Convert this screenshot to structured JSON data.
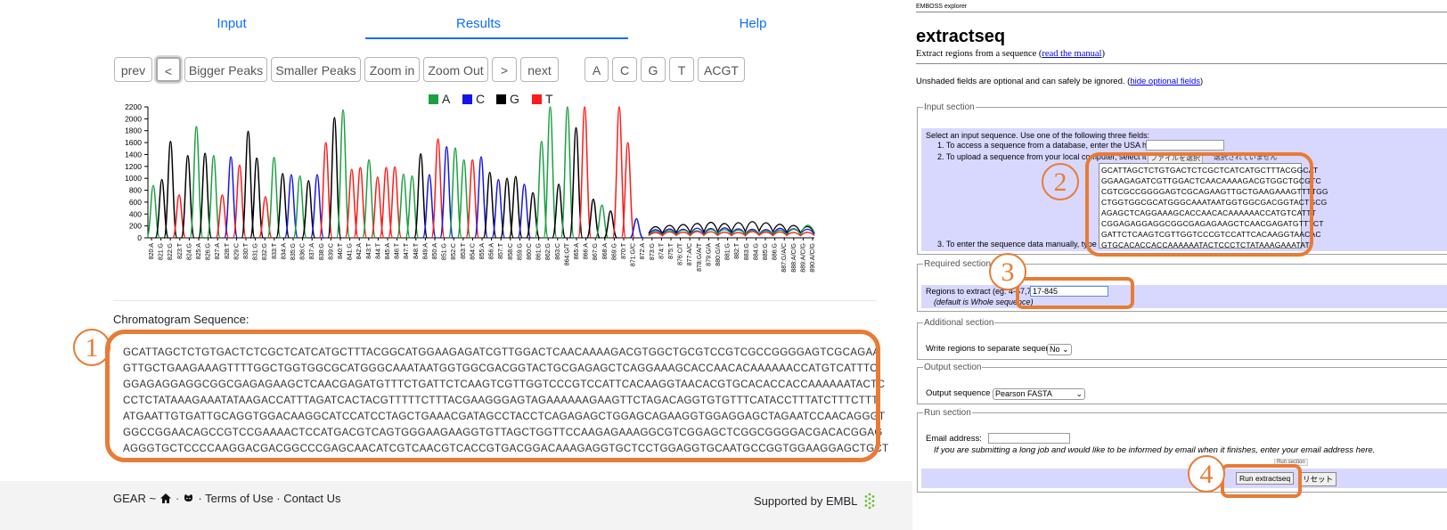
{
  "gear": {
    "tabs": {
      "input": "Input",
      "results": "Results",
      "help": "Help"
    },
    "toolbar": {
      "prev": "prev",
      "back": "<",
      "bigger": "Bigger Peaks",
      "smaller": "Smaller Peaks",
      "zoom_in": "Zoom in",
      "zoom_out": "Zoom Out",
      "forward": ">",
      "next": "next",
      "a": "A",
      "c": "C",
      "g": "G",
      "t": "T",
      "acgt": "ACGT"
    },
    "legend": [
      {
        "label": "A",
        "color": "#1aa040"
      },
      {
        "label": "C",
        "color": "#1515e6"
      },
      {
        "label": "G",
        "color": "#000000"
      },
      {
        "label": "T",
        "color": "#ff1a1a"
      }
    ],
    "seq_heading": "Chromatogram Sequence:",
    "sequence_lines": [
      "GCATTAGCTCTGTGACTCTCGCTCATCATGCTTTACGGCATGGAAGAGATCGTTGGACTCAACAAAAGACGTGGCTGCGTCCGTCGCCGGGGAGTCGCAGAA",
      "GTTGCTGAAGAAAGTTTTGGCTGGTGGCGCATGGGCAAATAATGGTGGCGACGGTACTGCGAGAGCTCAGGAAAGCACCAACACAAAAAACCATGTCATTTC",
      "GGAGAGGAGGCGGCGAGAGAAGCTCAACGAGATGTTTCTGATTCTCAAGTCGTTGGTCCCGTCCATTCACAAGGTAACACGTGCACACCACCAAAAAATACTC",
      "CCTCTATAAAGAAATATAAGACCATTTAGATCACTACGTTTTTCTTTACGAAGGGAGTAGAAAAAAGAAGTTCTAGACAGGTGTGTTTCATACCTTTATCTTTCTTT",
      "ATGAATTGTGATTGCAGGTGGACAAGGCATCCATCCTAGCTGAAACGATAGCCTACCTCAGAGAGCTGGAGCAGAAGGTGGAGGAGCTAGAATCCAACAGGGT",
      "GGCCGGAACAGCCGTCCGAAAACTCCATGACGTCAGTGGGAAGAAGGTGTTAGCTGGTTCCAAGAGAAAGGCGTCGGAGCTCGGCGGGGACGACACGGAG",
      "AGGGTGCTCCCCAAGGACGACGGCCCGAGCAACATCGTCAACGTCACCGTGACGGACAAAGAGGTGCTCCTGGAGGTGCAATGCCGGTGGAAGGAGCTGCT"
    ],
    "footer": {
      "left": "GEAR ~",
      "links": "· Terms of Use · Contact Us",
      "right": "Supported by EMBL"
    },
    "chart_data": {
      "type": "line",
      "ylim": [
        0,
        2200
      ],
      "yticks": [
        0,
        200,
        400,
        600,
        800,
        1000,
        1200,
        1400,
        1600,
        1800,
        2000,
        2200
      ],
      "xticks": [
        "820:A",
        "821:G",
        "822:G",
        "823:T",
        "824:G",
        "825:A",
        "826:G",
        "827:A",
        "828:T",
        "829:C",
        "830:T",
        "831:G",
        "832:G",
        "833:T",
        "834:A",
        "835:G",
        "836:C",
        "837:A",
        "838:G",
        "839:C",
        "840:T",
        "841:G",
        "842:A",
        "843:T",
        "844:T",
        "845:A",
        "846:T",
        "847:T",
        "848:T",
        "849:A",
        "850:A",
        "851:G",
        "852:C",
        "853:T",
        "854:C",
        "855:A",
        "856:A",
        "857:T",
        "858:C",
        "859:G",
        "860:C",
        "861:G",
        "862:G",
        "863:C",
        "864:G/T",
        "865:A",
        "866:A",
        "867:G",
        "868:A",
        "869:G",
        "870:T",
        "871:G/C",
        "872:A",
        "873:G",
        "874:T",
        "875:T",
        "876:C/T",
        "877:A/C",
        "878:G/A/T",
        "879:G/A",
        "880:G/A",
        "881:G",
        "882:T",
        "883:G",
        "884:G",
        "885:G",
        "886:G",
        "887:G/A/C",
        "888:A/C/G",
        "889:A/C/G",
        "890:A/C/G"
      ],
      "peaks": [
        {
          "base": "A",
          "height": 880
        },
        {
          "base": "G",
          "height": 980
        },
        {
          "base": "G",
          "height": 1620
        },
        {
          "base": "T",
          "height": 720
        },
        {
          "base": "G",
          "height": 1380
        },
        {
          "base": "A",
          "height": 1870
        },
        {
          "base": "G",
          "height": 1420
        },
        {
          "base": "A",
          "height": 1380
        },
        {
          "base": "T",
          "height": 720
        },
        {
          "base": "C",
          "height": 1360
        },
        {
          "base": "T",
          "height": 1220
        },
        {
          "base": "G",
          "height": 1790
        },
        {
          "base": "G",
          "height": 1340
        },
        {
          "base": "T",
          "height": 690
        },
        {
          "base": "A",
          "height": 1350
        },
        {
          "base": "G",
          "height": 1080
        },
        {
          "base": "C",
          "height": 1060
        },
        {
          "base": "A",
          "height": 1040
        },
        {
          "base": "G",
          "height": 960
        },
        {
          "base": "C",
          "height": 1060
        },
        {
          "base": "T",
          "height": 1600
        },
        {
          "base": "G",
          "height": 2020
        },
        {
          "base": "A",
          "height": 2150
        },
        {
          "base": "T",
          "height": 1150
        },
        {
          "base": "T",
          "height": 1180
        },
        {
          "base": "A",
          "height": 1310
        },
        {
          "base": "T",
          "height": 1020
        },
        {
          "base": "T",
          "height": 1180
        },
        {
          "base": "T",
          "height": 1190
        },
        {
          "base": "A",
          "height": 1070
        },
        {
          "base": "A",
          "height": 1040
        },
        {
          "base": "G",
          "height": 1410
        },
        {
          "base": "C",
          "height": 1060
        },
        {
          "base": "T",
          "height": 1660
        },
        {
          "base": "C",
          "height": 1530
        },
        {
          "base": "A",
          "height": 1510
        },
        {
          "base": "A",
          "height": 1310
        },
        {
          "base": "T",
          "height": 1310
        },
        {
          "base": "C",
          "height": 1360
        },
        {
          "base": "G",
          "height": 1100
        },
        {
          "base": "C",
          "height": 980
        },
        {
          "base": "G",
          "height": 1000
        },
        {
          "base": "G",
          "height": 1030
        },
        {
          "base": "C",
          "height": 900
        },
        {
          "base": "G",
          "height": 760
        },
        {
          "base": "A",
          "height": 1620
        },
        {
          "base": "A",
          "height": 2300
        },
        {
          "base": "G",
          "height": 900
        },
        {
          "base": "A",
          "height": 2300
        },
        {
          "base": "G",
          "height": 1850
        },
        {
          "base": "T",
          "height": 2300
        },
        {
          "base": "G",
          "height": 650
        },
        {
          "base": "A",
          "height": 550
        },
        {
          "base": "G",
          "height": 450
        },
        {
          "base": "T",
          "height": 2300
        },
        {
          "base": "T",
          "height": 1600
        },
        {
          "base": "C",
          "height": 320
        }
      ]
    }
  },
  "emboss": {
    "header_small": "EMBOSS explorer",
    "title": "extractseq",
    "subtitle_pre": "Extract regions from a sequence (",
    "subtitle_link": "read the manual",
    "subtitle_post": ")",
    "optional_note_pre": "Unshaded fields are optional and can safely be ignored. (",
    "optional_note_link": "hide optional fields",
    "optional_note_post": ")",
    "input_section": {
      "legend": "Input section",
      "intro": "Select an input sequence. Use one of the following three fields:",
      "item1": "1. To access a sequence from a database, enter the USA here:",
      "item2": "2. To upload a sequence from your local computer, select it here:",
      "file_button": "ファイルを選択",
      "file_status": "選択されていません",
      "item3": "3. To enter the sequence data manually, type here:",
      "textarea_lines": [
        "GCATTAGCTCTGTGACTCTCGCTCATCATGCTTTACGGCAT",
        "GGAAGAGATCGTTGGACTCAACAAAAGACGTGGCTGCGTC",
        "CGTCGCCGGGGAGTCGCAGAAGTTGCTGAAGAAAGTTTTGG",
        "CTGGTGGCGCATGGGCAAATAATGGTGGCGACGGTACTGCG",
        "AGAGCTCAGGAAAGCACCAACACAAAAAACCATGTCATTT",
        "CGGAGAGGAGGCGGCGAGAGAAGCTCAACGAGATGTTTCT",
        "GATTCTCAAGTCGTTGGTCCCGTCCATTCACAAGGTAACAC",
        "GTGCACACCACCAAAAAATACTCCCTCTATAAAGAAATAT"
      ]
    },
    "required_section": {
      "legend": "Required section",
      "regions_label": "Regions to extract (eg: 4-57,78-94)",
      "regions_value": "17-845",
      "default_note": "(default is Whole sequence)"
    },
    "additional_section": {
      "legend": "Additional section",
      "separate_label": "Write regions to separate sequences?",
      "separate_value": "No"
    },
    "output_section": {
      "legend": "Output section",
      "format_label": "Output sequence format",
      "format_value": "Pearson FASTA"
    },
    "run_section": {
      "legend": "Run section",
      "email_label": "Email address:",
      "email_value": "",
      "note": "If you are submitting a long job and would like to be informed by email when it finishes, enter your email address here.",
      "tooltip": "Run section",
      "run_button": "Run extractseq",
      "reset_button": "リセット"
    }
  },
  "annotations": [
    "1",
    "2",
    "3",
    "4"
  ]
}
